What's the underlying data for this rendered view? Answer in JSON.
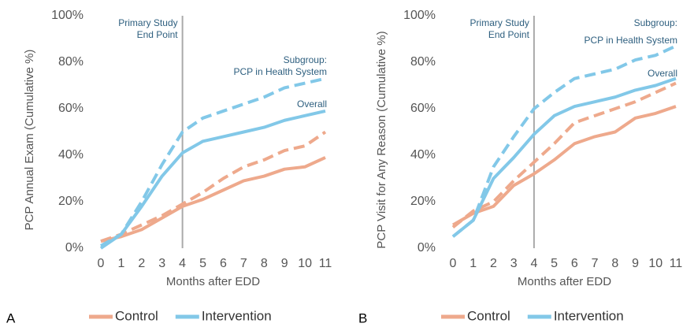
{
  "chart_data": [
    {
      "type": "line",
      "panel": "A",
      "xlabel": "Months after EDD",
      "ylabel": "PCP Annual Exam (Cumulative %)",
      "x": [
        0,
        1,
        2,
        3,
        4,
        5,
        6,
        7,
        8,
        9,
        10,
        11
      ],
      "xlim": [
        0,
        11
      ],
      "xticks": [
        0,
        1,
        2,
        3,
        4,
        5,
        6,
        7,
        8,
        9,
        10,
        11
      ],
      "ylim": [
        0,
        100
      ],
      "yticks": [
        {
          "value": 0,
          "label": "0%"
        },
        {
          "value": 20,
          "label": "20%"
        },
        {
          "value": 40,
          "label": "40%"
        },
        {
          "value": 60,
          "label": "60%"
        },
        {
          "value": 80,
          "label": "80%"
        },
        {
          "value": 100,
          "label": "100%"
        }
      ],
      "vline": {
        "x": 4,
        "label": [
          "Primary Study",
          "End Point"
        ]
      },
      "overall_label": "Overall",
      "subgroup_label": [
        "Subgroup:",
        "PCP in Health System"
      ],
      "series": [
        {
          "name": "Control",
          "color": "#eea98c",
          "values": [
            3,
            5,
            8,
            13,
            18,
            21,
            25,
            29,
            31,
            34,
            35,
            39
          ],
          "subgroup_values": [
            3,
            6,
            10,
            14,
            19,
            24,
            30,
            35,
            38,
            42,
            44,
            50
          ]
        },
        {
          "name": "Intervention",
          "color": "#82c8e8",
          "values": [
            0,
            6,
            18,
            31,
            41,
            46,
            48,
            50,
            52,
            55,
            57,
            59
          ],
          "subgroup_values": [
            1,
            6,
            20,
            36,
            50,
            56,
            59,
            62,
            65,
            69,
            71,
            73
          ]
        }
      ]
    },
    {
      "type": "line",
      "panel": "B",
      "xlabel": "Months after EDD",
      "ylabel": "PCP Visit for Any Reason (Cumulative %)",
      "x": [
        0,
        1,
        2,
        3,
        4,
        5,
        6,
        7,
        8,
        9,
        10,
        11
      ],
      "xlim": [
        0,
        11
      ],
      "xticks": [
        0,
        1,
        2,
        3,
        4,
        5,
        6,
        7,
        8,
        9,
        10,
        11
      ],
      "ylim": [
        0,
        100
      ],
      "yticks": [
        {
          "value": 0,
          "label": "0%"
        },
        {
          "value": 20,
          "label": "20%"
        },
        {
          "value": 40,
          "label": "40%"
        },
        {
          "value": 60,
          "label": "60%"
        },
        {
          "value": 80,
          "label": "80%"
        },
        {
          "value": 100,
          "label": "100%"
        }
      ],
      "vline": {
        "x": 4,
        "label": [
          "Primary Study",
          "End Point"
        ]
      },
      "overall_label": "Overall",
      "subgroup_label": [
        "Subgroup:",
        "PCP in Health System"
      ],
      "series": [
        {
          "name": "Control",
          "color": "#eea98c",
          "values": [
            10,
            15,
            18,
            27,
            32,
            38,
            45,
            48,
            50,
            56,
            58,
            61
          ],
          "subgroup_values": [
            9,
            16,
            20,
            29,
            37,
            45,
            54,
            57,
            60,
            63,
            67,
            71
          ]
        },
        {
          "name": "Intervention",
          "color": "#82c8e8",
          "values": [
            5,
            12,
            30,
            39,
            49,
            57,
            61,
            63,
            65,
            68,
            70,
            73
          ],
          "subgroup_values": [
            5,
            12,
            35,
            48,
            60,
            67,
            73,
            75,
            77,
            81,
            83,
            87
          ]
        }
      ]
    }
  ]
}
